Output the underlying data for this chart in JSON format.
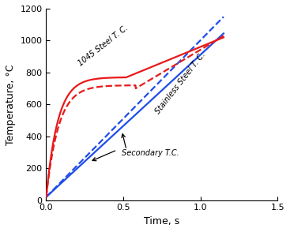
{
  "xlabel": "Time, s",
  "ylabel": "Temperature, °C",
  "xlim": [
    0,
    1.5
  ],
  "ylim": [
    0,
    1200
  ],
  "xticks": [
    0,
    0.5,
    1.0,
    1.5
  ],
  "yticks": [
    0,
    200,
    400,
    600,
    800,
    1000,
    1200
  ],
  "background_color": "#ffffff",
  "label_1045_primary": "1045 Steel T. C.",
  "label_ss_primary": "Stainless Steel T. C.",
  "label_secondary": "Secondary T.C.",
  "colors": {
    "red": "#e8191a",
    "blue": "#1f4de8"
  },
  "lw": 1.6
}
